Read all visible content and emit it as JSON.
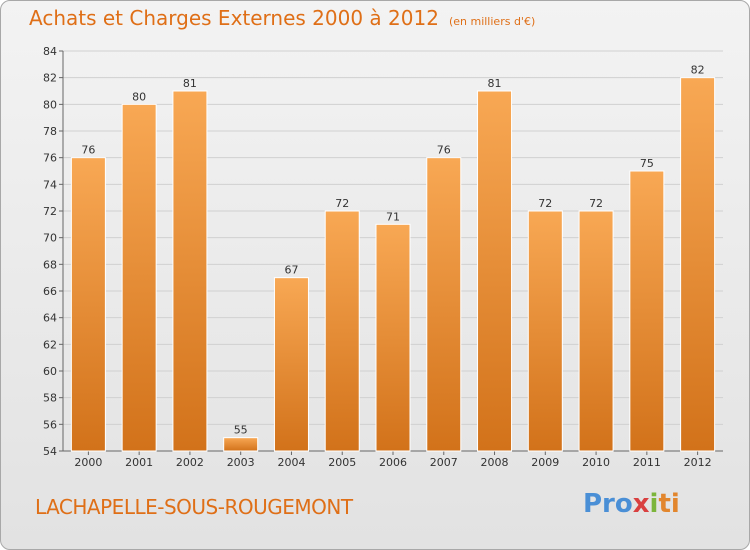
{
  "title": "Achats et Charges Externes 2000 à 2012",
  "unit": "(en milliers d'€)",
  "location": "LACHAPELLE-SOUS-ROUGEMONT",
  "logo": {
    "p1": "Pro",
    "p2": "x",
    "p3": "i",
    "p4": "ti"
  },
  "colors": {
    "bar_light": "#f7a552",
    "bar_dark": "#d4761c",
    "title": "#df6f17",
    "grid": "#cfcfcf"
  },
  "chart_data": {
    "type": "bar",
    "categories": [
      "2000",
      "2001",
      "2002",
      "2003",
      "2004",
      "2005",
      "2006",
      "2007",
      "2008",
      "2009",
      "2010",
      "2011",
      "2012"
    ],
    "values": [
      76,
      80,
      81,
      55,
      67,
      72,
      71,
      76,
      81,
      72,
      72,
      75,
      82
    ],
    "ylim": [
      54,
      84
    ],
    "yticks": [
      54,
      56,
      58,
      60,
      62,
      64,
      66,
      68,
      70,
      72,
      74,
      76,
      78,
      80,
      82,
      84
    ],
    "grid": true
  }
}
